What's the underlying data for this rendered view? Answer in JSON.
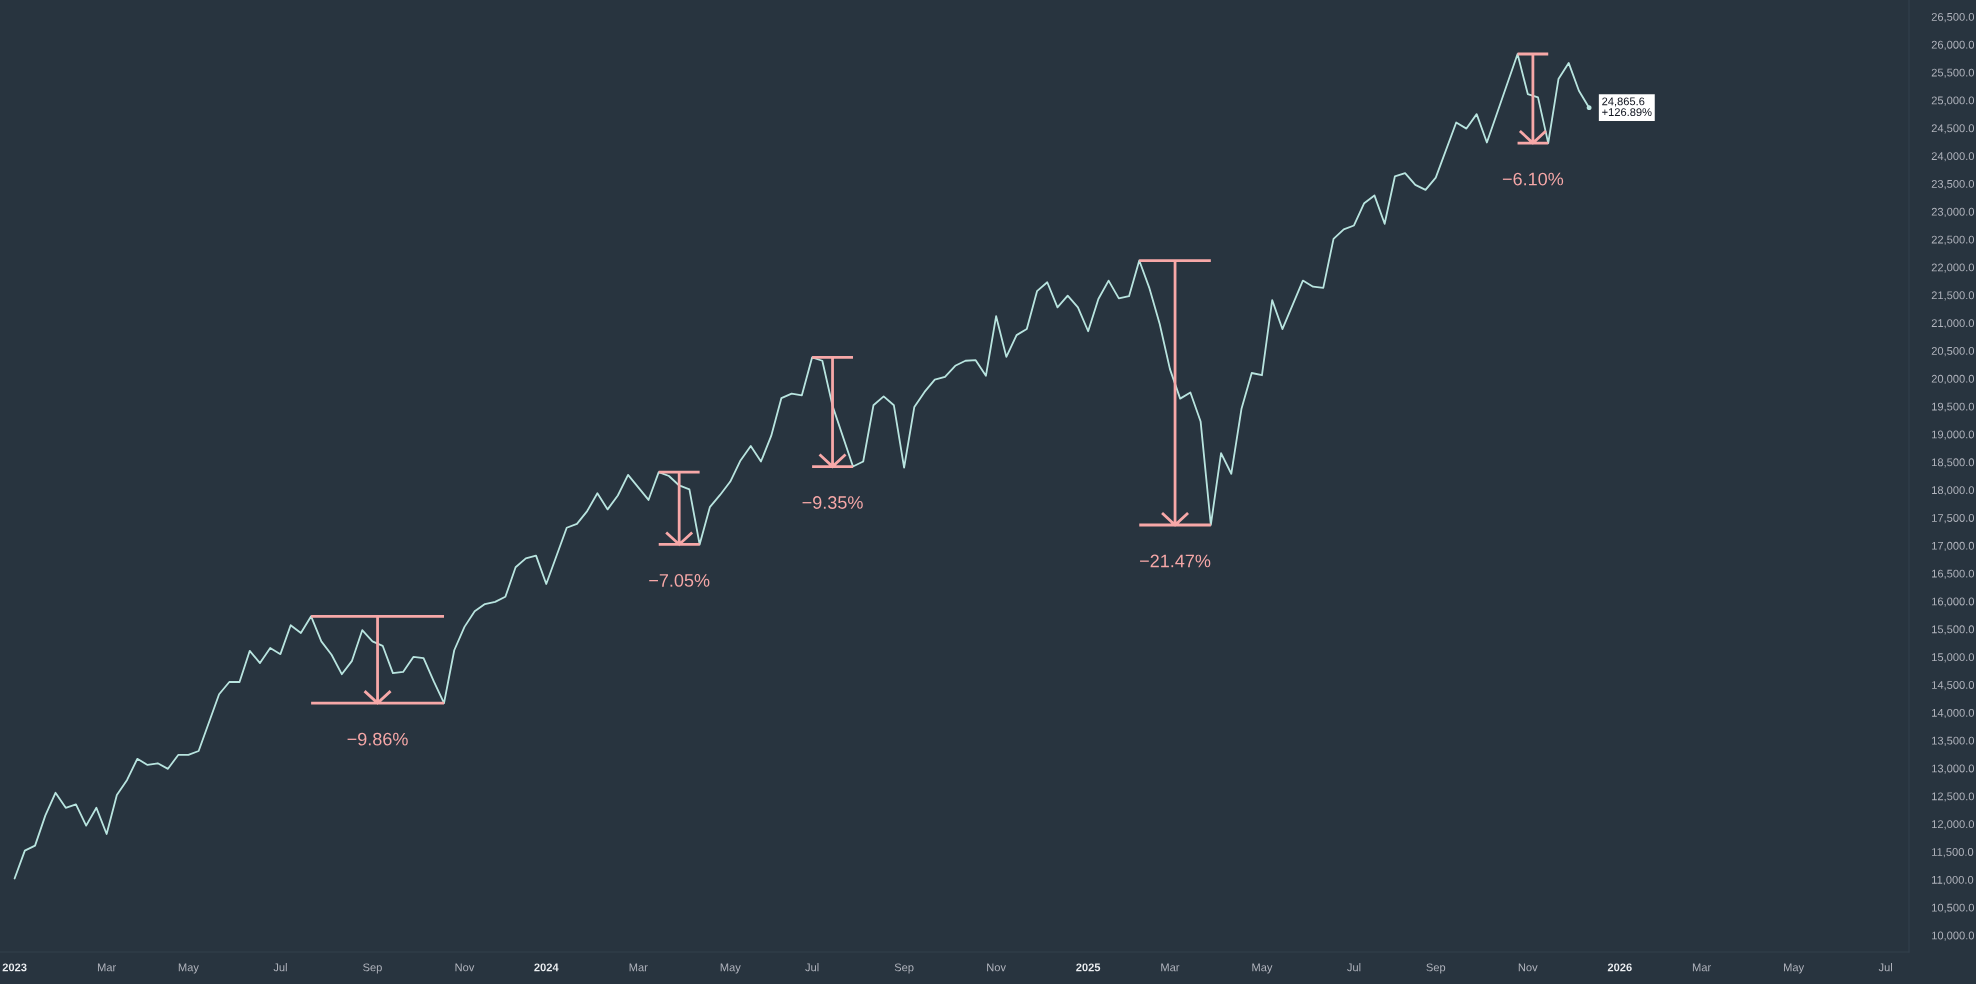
{
  "chart_data": {
    "type": "line",
    "series": [
      {
        "color": "#b8e4df",
        "x": [
          "2023-01-02",
          "2023-01-09",
          "2023-01-16",
          "2023-01-23",
          "2023-01-30",
          "2023-02-06",
          "2023-02-13",
          "2023-02-20",
          "2023-02-27",
          "2023-03-06",
          "2023-03-13",
          "2023-03-20",
          "2023-03-27",
          "2023-04-03",
          "2023-04-10",
          "2023-04-17",
          "2023-04-24",
          "2023-05-01",
          "2023-05-08",
          "2023-05-22",
          "2023-05-29",
          "2023-06-05",
          "2023-06-12",
          "2023-06-19",
          "2023-06-26",
          "2023-07-03",
          "2023-07-10",
          "2023-07-17",
          "2023-07-24",
          "2023-07-31",
          "2023-08-07",
          "2023-08-14",
          "2023-08-21",
          "2023-08-28",
          "2023-09-04",
          "2023-09-11",
          "2023-09-18",
          "2023-09-25",
          "2023-10-02",
          "2023-10-09",
          "2023-10-16",
          "2023-10-23",
          "2023-10-30",
          "2023-11-06",
          "2023-11-13",
          "2023-11-20",
          "2023-11-27",
          "2023-12-04",
          "2023-12-11",
          "2023-12-18",
          "2023-12-25",
          "2024-01-01",
          "2024-01-15",
          "2024-01-22",
          "2024-01-29",
          "2024-02-05",
          "2024-02-12",
          "2024-02-19",
          "2024-02-26",
          "2024-03-11",
          "2024-03-18",
          "2024-03-25",
          "2024-04-01",
          "2024-04-08",
          "2024-04-15",
          "2024-04-22",
          "2024-04-29",
          "2024-05-06",
          "2024-05-13",
          "2024-05-20",
          "2024-05-27",
          "2024-06-03",
          "2024-06-10",
          "2024-06-17",
          "2024-06-24",
          "2024-07-01",
          "2024-07-08",
          "2024-07-15",
          "2024-07-29",
          "2024-08-05",
          "2024-08-12",
          "2024-08-19",
          "2024-08-26",
          "2024-09-02",
          "2024-09-09",
          "2024-09-16",
          "2024-09-23",
          "2024-09-30",
          "2024-10-07",
          "2024-10-14",
          "2024-10-21",
          "2024-10-28",
          "2024-11-04",
          "2024-11-11",
          "2024-11-18",
          "2024-11-25",
          "2024-12-02",
          "2024-12-09",
          "2024-12-16",
          "2024-12-23",
          "2024-12-30",
          "2025-01-06",
          "2025-01-13",
          "2025-01-20",
          "2025-01-27",
          "2025-02-03",
          "2025-02-10",
          "2025-02-17",
          "2025-02-24",
          "2025-03-03",
          "2025-03-10",
          "2025-03-17",
          "2025-03-24",
          "2025-03-31",
          "2025-04-07",
          "2025-04-14",
          "2025-04-21",
          "2025-04-28",
          "2025-05-05",
          "2025-05-12",
          "2025-05-19",
          "2025-06-02",
          "2025-06-09",
          "2025-06-16",
          "2025-06-23",
          "2025-06-30",
          "2025-07-07",
          "2025-07-14",
          "2025-07-21",
          "2025-07-28",
          "2025-08-04",
          "2025-08-11",
          "2025-08-18",
          "2025-08-25",
          "2025-09-01",
          "2025-09-15",
          "2025-09-22",
          "2025-09-29",
          "2025-10-06",
          "2025-10-27",
          "2025-11-03",
          "2025-11-10",
          "2025-11-17",
          "2025-11-24",
          "2025-12-01",
          "2025-12-08",
          "2025-12-15"
        ],
        "values": [
          11020,
          11520,
          11610,
          12150,
          12560,
          12290,
          12350,
          11970,
          12290,
          11820,
          12520,
          12790,
          13170,
          13060,
          13090,
          12990,
          13240,
          13240,
          13310,
          14330,
          14550,
          14550,
          15110,
          14890,
          15160,
          15050,
          15570,
          15430,
          15730,
          15280,
          15040,
          14690,
          14930,
          15480,
          15280,
          15200,
          14710,
          14730,
          15000,
          14980,
          14560,
          14170,
          15120,
          15540,
          15820,
          15950,
          15990,
          16080,
          16610,
          16770,
          16820,
          16310,
          17320,
          17390,
          17620,
          17940,
          17650,
          17900,
          18270,
          17820,
          18320,
          18250,
          18080,
          18010,
          17020,
          17690,
          17910,
          18150,
          18530,
          18790,
          18510,
          18970,
          19650,
          19730,
          19700,
          20380,
          20320,
          19510,
          18420,
          18510,
          19520,
          19680,
          19520,
          18400,
          19490,
          19760,
          19980,
          20030,
          20230,
          20320,
          20330,
          20050,
          21120,
          20390,
          20780,
          20890,
          21570,
          21730,
          21280,
          21490,
          21280,
          20850,
          21430,
          21760,
          21440,
          21480,
          22120,
          21620,
          20980,
          20170,
          19640,
          19750,
          19230,
          17370,
          18660,
          18290,
          19460,
          20100,
          20060,
          21410,
          20890,
          21760,
          21650,
          21630,
          22510,
          22680,
          22750,
          23150,
          23290,
          22780,
          23630,
          23690,
          23480,
          23390,
          23610,
          24600,
          24490,
          24750,
          24240,
          25830,
          25110,
          25050,
          24230,
          25380,
          25670,
          25170,
          24865.6
        ]
      }
    ],
    "xlim": [
      "2022-12-23",
      "2026-07-22"
    ],
    "xticks": [
      {
        "value": "2023-01-02",
        "label": "2023"
      },
      {
        "value": "2023-03-06",
        "label": "Mar"
      },
      {
        "value": "2023-05-01",
        "label": "May"
      },
      {
        "value": "2023-07-03",
        "label": "Jul"
      },
      {
        "value": "2023-09-04",
        "label": "Sep"
      },
      {
        "value": "2023-11-06",
        "label": "Nov"
      },
      {
        "value": "2024-01-01",
        "label": "2024"
      },
      {
        "value": "2024-03-04",
        "label": "Mar"
      },
      {
        "value": "2024-05-06",
        "label": "May"
      },
      {
        "value": "2024-07-01",
        "label": "Jul"
      },
      {
        "value": "2024-09-02",
        "label": "Sep"
      },
      {
        "value": "2024-11-04",
        "label": "Nov"
      },
      {
        "value": "2025-01-06",
        "label": "2025"
      },
      {
        "value": "2025-03-03",
        "label": "Mar"
      },
      {
        "value": "2025-05-05",
        "label": "May"
      },
      {
        "value": "2025-07-07",
        "label": "Jul"
      },
      {
        "value": "2025-09-01",
        "label": "Sep"
      },
      {
        "value": "2025-11-03",
        "label": "Nov"
      },
      {
        "value": "2026-01-05",
        "label": "2026"
      },
      {
        "value": "2026-03-02",
        "label": "Mar"
      },
      {
        "value": "2026-05-04",
        "label": "May"
      },
      {
        "value": "2026-07-06",
        "label": "Jul"
      }
    ],
    "ylim": [
      9700,
      26800
    ],
    "yticks": [
      {
        "value": 10000,
        "label": "10,000.0"
      },
      {
        "value": 10500,
        "label": "10,500.0"
      },
      {
        "value": 11000,
        "label": "11,000.0"
      },
      {
        "value": 11500,
        "label": "11,500.0"
      },
      {
        "value": 12000,
        "label": "12,000.0"
      },
      {
        "value": 12500,
        "label": "12,500.0"
      },
      {
        "value": 13000,
        "label": "13,000.0"
      },
      {
        "value": 13500,
        "label": "13,500.0"
      },
      {
        "value": 14000,
        "label": "14,000.0"
      },
      {
        "value": 14500,
        "label": "14,500.0"
      },
      {
        "value": 15000,
        "label": "15,000.0"
      },
      {
        "value": 15500,
        "label": "15,500.0"
      },
      {
        "value": 16000,
        "label": "16,000.0"
      },
      {
        "value": 16500,
        "label": "16,500.0"
      },
      {
        "value": 17000,
        "label": "17,000.0"
      },
      {
        "value": 17500,
        "label": "17,500.0"
      },
      {
        "value": 18000,
        "label": "18,000.0"
      },
      {
        "value": 18500,
        "label": "18,500.0"
      },
      {
        "value": 19000,
        "label": "19,000.0"
      },
      {
        "value": 19500,
        "label": "19,500.0"
      },
      {
        "value": 20000,
        "label": "20,000.0"
      },
      {
        "value": 20500,
        "label": "20,500.0"
      },
      {
        "value": 21000,
        "label": "21,000.0"
      },
      {
        "value": 21500,
        "label": "21,500.0"
      },
      {
        "value": 22000,
        "label": "22,000.0"
      },
      {
        "value": 22500,
        "label": "22,500.0"
      },
      {
        "value": 23000,
        "label": "23,000.0"
      },
      {
        "value": 23500,
        "label": "23,500.0"
      },
      {
        "value": 24000,
        "label": "24,000.0"
      },
      {
        "value": 24500,
        "label": "24,500.0"
      },
      {
        "value": 25000,
        "label": "25,000.0"
      },
      {
        "value": 25500,
        "label": "25,500.0"
      },
      {
        "value": 26000,
        "label": "26,000.0"
      },
      {
        "value": 26500,
        "label": "26,500.0"
      }
    ],
    "annotations": [
      {
        "text": "−9.86%",
        "x": "2023-10-23",
        "y": 14170
      },
      {
        "text": "−7.05%",
        "x": "2024-04-15",
        "y": 17020
      },
      {
        "text": "−9.35%",
        "x": "2024-07-29",
        "y": 18420
      },
      {
        "text": "−21.47%",
        "x": "2025-03-31",
        "y": 17370
      },
      {
        "text": "−6.10%",
        "x": "2025-11-17",
        "y": 24230
      },
      {
        "text": "24,865.6\n+126.89%",
        "x": "2025-12-15",
        "y": 24865.6
      }
    ],
    "grid": false
  }
}
